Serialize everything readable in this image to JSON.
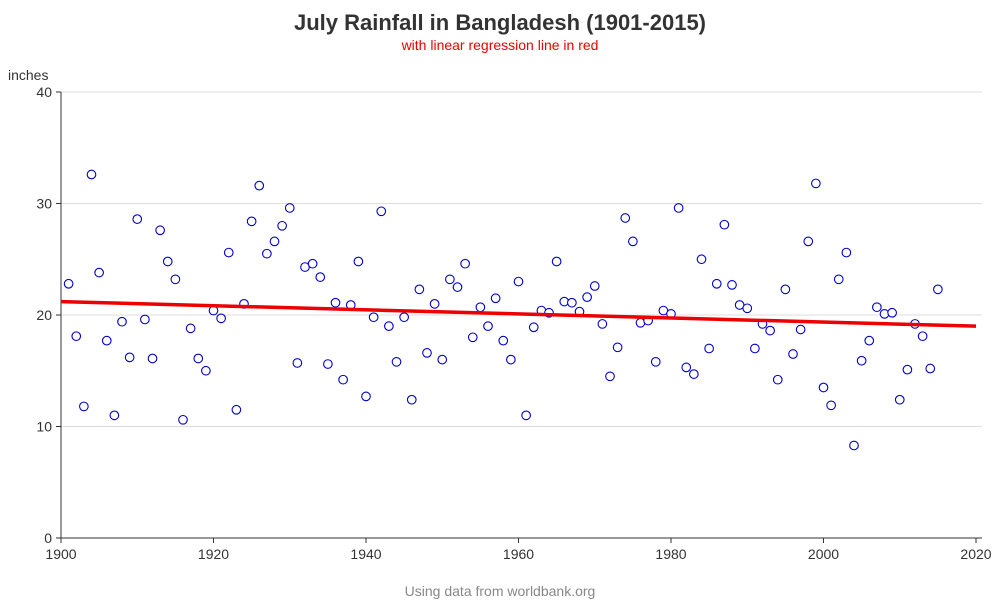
{
  "chart_data": {
    "type": "scatter",
    "title": "July Rainfall in Bangladesh (1901-2015)",
    "subtitle": "with linear regression line in red",
    "xlabel": "",
    "ylabel": "inches",
    "footnote": "Using data from worldbank.org",
    "xlim": [
      1900,
      2020
    ],
    "ylim": [
      0,
      40
    ],
    "xticks": [
      1900,
      1920,
      1940,
      1960,
      1980,
      2000,
      2020
    ],
    "yticks": [
      0,
      10,
      20,
      30,
      40
    ],
    "grid": "horizontal",
    "points": [
      [
        1901,
        22.8
      ],
      [
        1902,
        18.1
      ],
      [
        1903,
        11.8
      ],
      [
        1904,
        32.6
      ],
      [
        1905,
        23.8
      ],
      [
        1906,
        17.7
      ],
      [
        1907,
        11.0
      ],
      [
        1908,
        19.4
      ],
      [
        1909,
        16.2
      ],
      [
        1910,
        28.6
      ],
      [
        1911,
        19.6
      ],
      [
        1912,
        16.1
      ],
      [
        1913,
        27.6
      ],
      [
        1914,
        24.8
      ],
      [
        1915,
        23.2
      ],
      [
        1916,
        10.6
      ],
      [
        1917,
        18.8
      ],
      [
        1918,
        16.1
      ],
      [
        1919,
        15.0
      ],
      [
        1920,
        20.4
      ],
      [
        1921,
        19.7
      ],
      [
        1922,
        25.6
      ],
      [
        1923,
        11.5
      ],
      [
        1924,
        21.0
      ],
      [
        1925,
        28.4
      ],
      [
        1926,
        31.6
      ],
      [
        1927,
        25.5
      ],
      [
        1928,
        26.6
      ],
      [
        1929,
        28.0
      ],
      [
        1930,
        29.6
      ],
      [
        1931,
        15.7
      ],
      [
        1932,
        24.3
      ],
      [
        1933,
        24.6
      ],
      [
        1934,
        23.4
      ],
      [
        1935,
        15.6
      ],
      [
        1936,
        21.1
      ],
      [
        1937,
        14.2
      ],
      [
        1938,
        20.9
      ],
      [
        1939,
        24.8
      ],
      [
        1940,
        12.7
      ],
      [
        1941,
        19.8
      ],
      [
        1942,
        29.3
      ],
      [
        1943,
        19.0
      ],
      [
        1944,
        15.8
      ],
      [
        1945,
        19.8
      ],
      [
        1946,
        12.4
      ],
      [
        1947,
        22.3
      ],
      [
        1948,
        16.6
      ],
      [
        1949,
        21.0
      ],
      [
        1950,
        16.0
      ],
      [
        1951,
        23.2
      ],
      [
        1952,
        22.5
      ],
      [
        1953,
        24.6
      ],
      [
        1954,
        18.0
      ],
      [
        1955,
        20.7
      ],
      [
        1956,
        19.0
      ],
      [
        1957,
        21.5
      ],
      [
        1958,
        17.7
      ],
      [
        1959,
        16.0
      ],
      [
        1960,
        23.0
      ],
      [
        1961,
        11.0
      ],
      [
        1962,
        18.9
      ],
      [
        1963,
        20.4
      ],
      [
        1964,
        20.2
      ],
      [
        1965,
        24.8
      ],
      [
        1966,
        21.2
      ],
      [
        1967,
        21.1
      ],
      [
        1968,
        20.3
      ],
      [
        1969,
        21.6
      ],
      [
        1970,
        22.6
      ],
      [
        1971,
        19.2
      ],
      [
        1972,
        14.5
      ],
      [
        1973,
        17.1
      ],
      [
        1974,
        28.7
      ],
      [
        1975,
        26.6
      ],
      [
        1976,
        19.3
      ],
      [
        1977,
        19.5
      ],
      [
        1978,
        15.8
      ],
      [
        1979,
        20.4
      ],
      [
        1980,
        20.1
      ],
      [
        1981,
        29.6
      ],
      [
        1982,
        15.3
      ],
      [
        1983,
        14.7
      ],
      [
        1984,
        25.0
      ],
      [
        1985,
        17.0
      ],
      [
        1986,
        22.8
      ],
      [
        1987,
        28.1
      ],
      [
        1988,
        22.7
      ],
      [
        1989,
        20.9
      ],
      [
        1990,
        20.6
      ],
      [
        1991,
        17.0
      ],
      [
        1992,
        19.2
      ],
      [
        1993,
        18.6
      ],
      [
        1994,
        14.2
      ],
      [
        1995,
        22.3
      ],
      [
        1996,
        16.5
      ],
      [
        1997,
        18.7
      ],
      [
        1998,
        26.6
      ],
      [
        1999,
        31.8
      ],
      [
        2000,
        13.5
      ],
      [
        2001,
        11.9
      ],
      [
        2002,
        23.2
      ],
      [
        2003,
        25.6
      ],
      [
        2004,
        8.3
      ],
      [
        2005,
        15.9
      ],
      [
        2006,
        17.7
      ],
      [
        2007,
        20.7
      ],
      [
        2008,
        20.1
      ],
      [
        2009,
        20.2
      ],
      [
        2010,
        12.4
      ],
      [
        2011,
        15.1
      ],
      [
        2012,
        19.2
      ],
      [
        2013,
        18.1
      ],
      [
        2014,
        15.2
      ],
      [
        2015,
        22.3
      ]
    ],
    "regression": {
      "x": [
        1900,
        2020
      ],
      "y": [
        21.2,
        19.0
      ]
    },
    "colors": {
      "points": "#0000cc",
      "regression": "#ee0000",
      "subtitle": "#ee0000",
      "grid": "#dddddd",
      "axis": "#333333"
    }
  }
}
